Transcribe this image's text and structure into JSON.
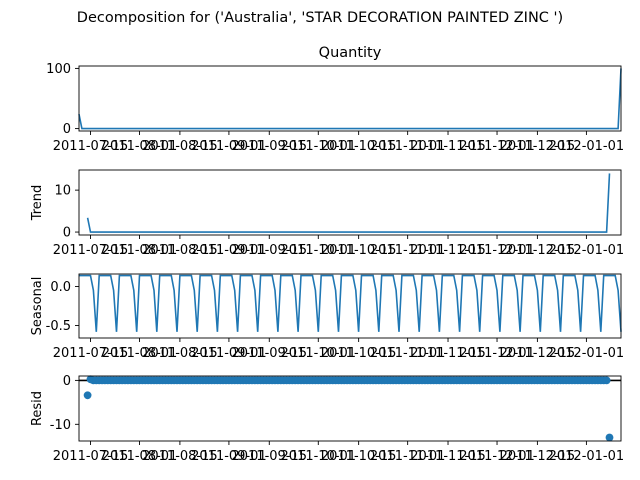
{
  "figure": {
    "suptitle": "Decomposition for ('Australia', 'STAR DECORATION PAINTED ZINC ')"
  },
  "chart_data": [
    {
      "type": "line",
      "panel": "observed",
      "title": "Quantity",
      "ylabel": "",
      "ylim": [
        -4,
        104
      ],
      "yticks": [
        0,
        100
      ],
      "xlim": [
        0,
        188
      ],
      "xtick_days": [
        4,
        21,
        35,
        52,
        66,
        83,
        97,
        114,
        128,
        145,
        159,
        176
      ],
      "xtick_labels": [
        "2011-07-15",
        "2011-08-01",
        "2011-08-15",
        "2011-09-01",
        "2011-09-15",
        "2011-10-01",
        "2011-10-15",
        "2011-11-01",
        "2011-11-15",
        "2011-12-01",
        "2011-12-15",
        "2012-01-01"
      ],
      "x": [
        0,
        1,
        187,
        188
      ],
      "values": [
        24,
        0,
        0,
        100
      ]
    },
    {
      "type": "line",
      "panel": "trend",
      "title": "",
      "ylabel": "Trend",
      "ylim": [
        -0.7,
        14.8
      ],
      "yticks": [
        0,
        10
      ],
      "xlim": [
        0,
        188
      ],
      "x": [
        3,
        4,
        183,
        184
      ],
      "values": [
        3.4,
        0,
        0,
        14.0
      ]
    },
    {
      "type": "line",
      "panel": "seasonal",
      "title": "",
      "ylabel": "Seasonal",
      "ylim": [
        -0.66,
        0.16
      ],
      "yticks": [
        0.0,
        -0.5
      ],
      "xlim": [
        0,
        188
      ],
      "period": 7,
      "pattern": [
        0.14,
        0.14,
        0.14,
        0.14,
        0.14,
        -0.05,
        -0.58
      ]
    },
    {
      "type": "scatter",
      "panel": "residual",
      "title": "",
      "ylabel": "Resid",
      "ylim": [
        -13.8,
        1.0
      ],
      "yticks": [
        0,
        -10
      ],
      "xlim": [
        0,
        188
      ],
      "x_start": 3,
      "x_end": 184,
      "baseline": 0.0,
      "outliers": [
        {
          "x": 3,
          "y": -3.4
        },
        {
          "x": 4,
          "y": 0.25
        },
        {
          "x": 184,
          "y": -13.0
        }
      ]
    }
  ]
}
